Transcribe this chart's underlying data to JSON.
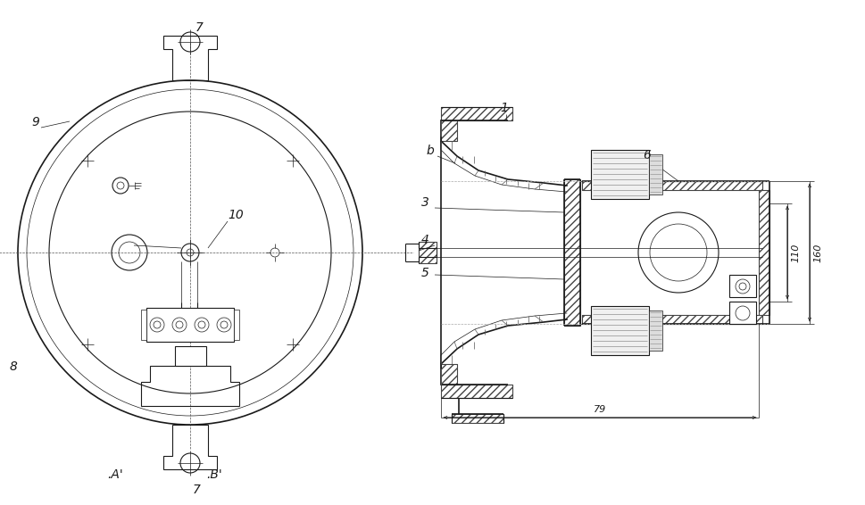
{
  "bg_color": "#ffffff",
  "line_color": "#1a1a1a",
  "figsize": [
    9.7,
    5.66
  ],
  "dpi": 100,
  "labels": {
    "7_top": "7",
    "9": "9",
    "10": "10",
    "8": "8",
    "A_prime": ".A'",
    "B_prime": ".B'",
    "7_bot": "7",
    "1": "1",
    "b": "b",
    "3": "3",
    "4": "4",
    "5": "5",
    "6": "6",
    "79": "79",
    "110": "110",
    "160": "160"
  }
}
